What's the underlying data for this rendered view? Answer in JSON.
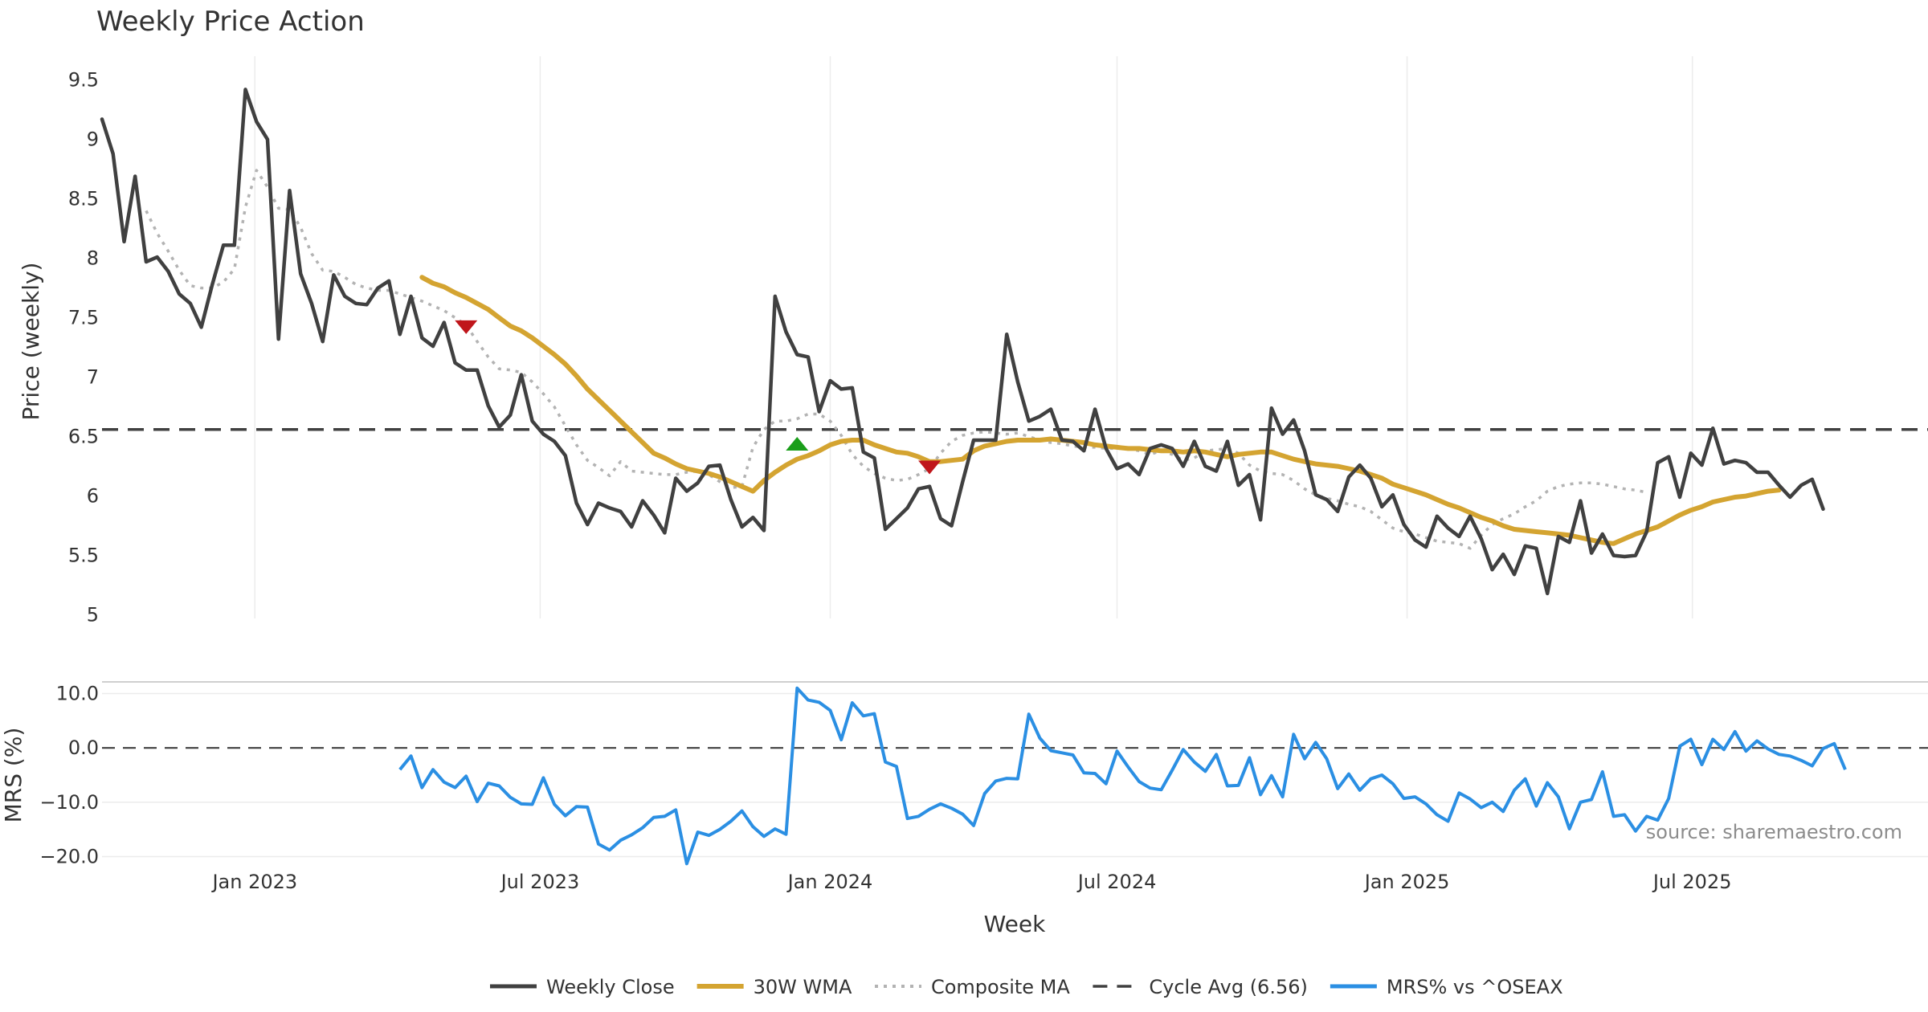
{
  "chart_data": {
    "type": "line",
    "title": "Weekly Price Action",
    "source": "source: sharemaestro.com",
    "xlabel": "Week",
    "x_ticks": [
      "Jan 2023",
      "Jul 2023",
      "Jan 2024",
      "Jul 2024",
      "Jan 2025",
      "Jul 2025"
    ],
    "x_start": "2022-09-26",
    "weeks": 166,
    "price_panel": {
      "ylabel": "Price (weekly)",
      "ylim": [
        4.97,
        9.7
      ],
      "y_ticks": [
        "9.5",
        "9",
        "8.5",
        "8",
        "7.5",
        "7",
        "6.5",
        "6",
        "5.5",
        "5"
      ],
      "cycle_avg": 6.56,
      "series": [
        {
          "name": "Weekly Close",
          "color": "#404040",
          "start_index": 0,
          "values": [
            9.17,
            8.88,
            8.14,
            8.69,
            7.97,
            8.01,
            7.89,
            7.7,
            7.62,
            7.42,
            7.78,
            8.11,
            8.11,
            9.42,
            9.15,
            9.0,
            7.32,
            8.57,
            7.87,
            7.62,
            7.3,
            7.86,
            7.68,
            7.62,
            7.61,
            7.75,
            7.81,
            7.36,
            7.68,
            7.33,
            7.26,
            7.46,
            7.12,
            7.06,
            7.06,
            6.76,
            6.58,
            6.68,
            7.02,
            6.63,
            6.52,
            6.46,
            6.34,
            5.94,
            5.76,
            5.94,
            5.9,
            5.87,
            5.74,
            5.96,
            5.84,
            5.69,
            6.15,
            6.04,
            6.11,
            6.25,
            6.26,
            5.97,
            5.74,
            5.82,
            5.71,
            7.68,
            7.38,
            7.19,
            7.17,
            6.71,
            6.97,
            6.9,
            6.91,
            6.37,
            6.32,
            5.72,
            5.81,
            5.9,
            6.06,
            6.08,
            5.81,
            5.75,
            6.12,
            6.47,
            6.47,
            6.47,
            7.36,
            6.96,
            6.63,
            6.67,
            6.73,
            6.47,
            6.46,
            6.38,
            6.73,
            6.4,
            6.23,
            6.27,
            6.18,
            6.4,
            6.43,
            6.4,
            6.25,
            6.46,
            6.25,
            6.21,
            6.46,
            6.09,
            6.18,
            5.8,
            6.74,
            6.52,
            6.64,
            6.38,
            6.01,
            5.97,
            5.87,
            6.16,
            6.26,
            6.15,
            5.91,
            6.01,
            5.76,
            5.63,
            5.57,
            5.83,
            5.73,
            5.66,
            5.83,
            5.64,
            5.38,
            5.51,
            5.34,
            5.58,
            5.56,
            5.18,
            5.66,
            5.61,
            5.96,
            5.52,
            5.68,
            5.5,
            5.49,
            5.5,
            5.7,
            6.28,
            6.33,
            5.99,
            6.36,
            6.26,
            6.57,
            6.27,
            6.3,
            6.28,
            6.2,
            6.2,
            6.09,
            5.99,
            6.09,
            6.14,
            5.89
          ]
        },
        {
          "name": "30W WMA",
          "color": "#d4a431",
          "start_index": 29,
          "values": [
            7.84,
            7.79,
            7.76,
            7.71,
            7.67,
            7.62,
            7.57,
            7.5,
            7.43,
            7.39,
            7.33,
            7.26,
            7.19,
            7.11,
            7.01,
            6.9,
            6.81,
            6.72,
            6.63,
            6.54,
            6.45,
            6.36,
            6.32,
            6.27,
            6.23,
            6.21,
            6.19,
            6.16,
            6.12,
            6.08,
            6.04,
            6.13,
            6.2,
            6.26,
            6.31,
            6.34,
            6.38,
            6.43,
            6.46,
            6.47,
            6.47,
            6.43,
            6.4,
            6.37,
            6.36,
            6.33,
            6.29,
            6.29,
            6.3,
            6.31,
            6.38,
            6.42,
            6.44,
            6.46,
            6.47,
            6.47,
            6.47,
            6.48,
            6.47,
            6.46,
            6.45,
            6.43,
            6.42,
            6.41,
            6.4,
            6.4,
            6.39,
            6.38,
            6.38,
            6.37,
            6.38,
            6.37,
            6.35,
            6.33,
            6.35,
            6.36,
            6.37,
            6.37,
            6.34,
            6.31,
            6.29,
            6.27,
            6.26,
            6.25,
            6.23,
            6.21,
            6.18,
            6.15,
            6.1,
            6.07,
            6.04,
            6.01,
            5.97,
            5.93,
            5.9,
            5.86,
            5.82,
            5.79,
            5.75,
            5.72,
            5.71,
            5.7,
            5.69,
            5.68,
            5.67,
            5.65,
            5.63,
            5.61,
            5.6,
            5.64,
            5.68,
            5.71,
            5.74,
            5.79,
            5.84,
            5.88,
            5.91,
            5.95,
            5.97,
            5.99,
            6.0,
            6.02,
            6.04,
            6.05
          ]
        },
        {
          "name": "Composite MA",
          "color": "#b3b3b3",
          "start_index": 4,
          "values": [
            8.4,
            8.21,
            8.06,
            7.9,
            7.77,
            7.75,
            7.75,
            7.8,
            7.91,
            8.43,
            8.74,
            8.6,
            8.42,
            8.41,
            8.26,
            8.04,
            7.9,
            7.89,
            7.84,
            7.78,
            7.75,
            7.73,
            7.73,
            7.7,
            7.67,
            7.64,
            7.6,
            7.56,
            7.5,
            7.44,
            7.3,
            7.17,
            7.07,
            7.06,
            7.04,
            6.96,
            6.86,
            6.75,
            6.59,
            6.43,
            6.3,
            6.24,
            6.17,
            6.29,
            6.21,
            6.2,
            6.19,
            6.18,
            6.18,
            6.2,
            6.21,
            6.18,
            6.12,
            6.07,
            6.08,
            6.41,
            6.56,
            6.63,
            6.63,
            6.65,
            6.69,
            6.69,
            6.63,
            6.51,
            6.35,
            6.25,
            6.19,
            6.15,
            6.13,
            6.14,
            6.18,
            6.23,
            6.36,
            6.46,
            6.51,
            6.53,
            6.54,
            6.53,
            6.52,
            6.53,
            6.5,
            6.47,
            6.45,
            6.44,
            6.42,
            6.41,
            6.41,
            6.4,
            6.4,
            6.4,
            6.38,
            6.35,
            6.38,
            6.35,
            6.3,
            6.32,
            6.38,
            6.39,
            6.4,
            6.36,
            6.26,
            6.21,
            6.19,
            6.18,
            6.13,
            6.06,
            6.01,
            5.98,
            5.96,
            5.93,
            5.91,
            5.87,
            5.8,
            5.73,
            5.7,
            5.68,
            5.65,
            5.62,
            5.61,
            5.6,
            5.56,
            5.67,
            5.76,
            5.81,
            5.85,
            5.91,
            5.96,
            6.04,
            6.08,
            6.1,
            6.11,
            6.11,
            6.1,
            6.08,
            6.06,
            6.05,
            6.03
          ]
        }
      ],
      "signals": [
        {
          "type": "sell",
          "week_index": 33,
          "price": 7.42,
          "color": "#c0161b"
        },
        {
          "type": "buy",
          "week_index": 63,
          "price": 6.44,
          "color": "#1a9e1a"
        },
        {
          "type": "sell",
          "week_index": 75,
          "price": 6.24,
          "color": "#c0161b"
        }
      ]
    },
    "mrs_panel": {
      "ylabel": "MRS (%)",
      "ylim": [
        -22,
        12
      ],
      "y_ticks": [
        "10.0",
        "0.0",
        "−10.0",
        "−20.0"
      ],
      "zero_line": 0,
      "series": [
        {
          "name": "MRS% vs ^OSEAX",
          "color": "#2b8fe3",
          "start_index": 27,
          "values": [
            -4.0,
            -1.5,
            -7.3,
            -4.0,
            -6.3,
            -7.3,
            -5.2,
            -9.9,
            -6.5,
            -7.0,
            -9.1,
            -10.3,
            -10.4,
            -5.5,
            -10.4,
            -12.5,
            -10.8,
            -10.9,
            -17.7,
            -18.8,
            -17.0,
            -16.0,
            -14.7,
            -12.8,
            -12.6,
            -11.4,
            -21.3,
            -15.5,
            -16.1,
            -15.0,
            -13.5,
            -11.6,
            -14.5,
            -16.3,
            -14.9,
            -15.9,
            11.0,
            8.8,
            8.4,
            6.9,
            1.5,
            8.3,
            5.9,
            6.3,
            -2.6,
            -3.4,
            -13.0,
            -12.6,
            -11.3,
            -10.3,
            -11.1,
            -12.2,
            -14.3,
            -8.4,
            -6.1,
            -5.6,
            -5.7,
            6.2,
            1.8,
            -0.5,
            -0.9,
            -1.3,
            -4.6,
            -4.7,
            -6.6,
            -0.6,
            -3.5,
            -6.2,
            -7.4,
            -7.7,
            -4.1,
            -0.3,
            -2.6,
            -4.3,
            -1.2,
            -7.0,
            -6.9,
            -1.8,
            -8.6,
            -5.1,
            -9.0,
            2.5,
            -2.0,
            1.0,
            -2.0,
            -7.5,
            -4.8,
            -7.8,
            -5.7,
            -5.0,
            -6.6,
            -9.3,
            -9.0,
            -10.3,
            -12.3,
            -13.5,
            -8.3,
            -9.4,
            -11.0,
            -10.0,
            -11.7,
            -7.8,
            -5.7,
            -10.7,
            -6.4,
            -9.0,
            -14.9,
            -10.0,
            -9.5,
            -4.4,
            -12.6,
            -12.3,
            -15.3,
            -12.6,
            -13.3,
            -9.3,
            0.3,
            1.6,
            -3.1,
            1.6,
            -0.3,
            3.0,
            -0.6,
            1.3,
            -0.2,
            -1.2,
            -1.5,
            -2.3,
            -3.3,
            -0.1,
            0.8,
            -4.0
          ]
        }
      ]
    },
    "legend": [
      {
        "label": "Weekly Close",
        "style": "solid",
        "color": "#404040"
      },
      {
        "label": "30W WMA",
        "style": "solid-thick",
        "color": "#d4a431"
      },
      {
        "label": "Composite MA",
        "style": "dotted",
        "color": "#b3b3b3"
      },
      {
        "label": "Cycle Avg (6.56)",
        "style": "dashed",
        "color": "#404040"
      },
      {
        "label": "MRS% vs ^OSEAX",
        "style": "solid",
        "color": "#2b8fe3"
      }
    ],
    "legend_position": "bottom"
  }
}
